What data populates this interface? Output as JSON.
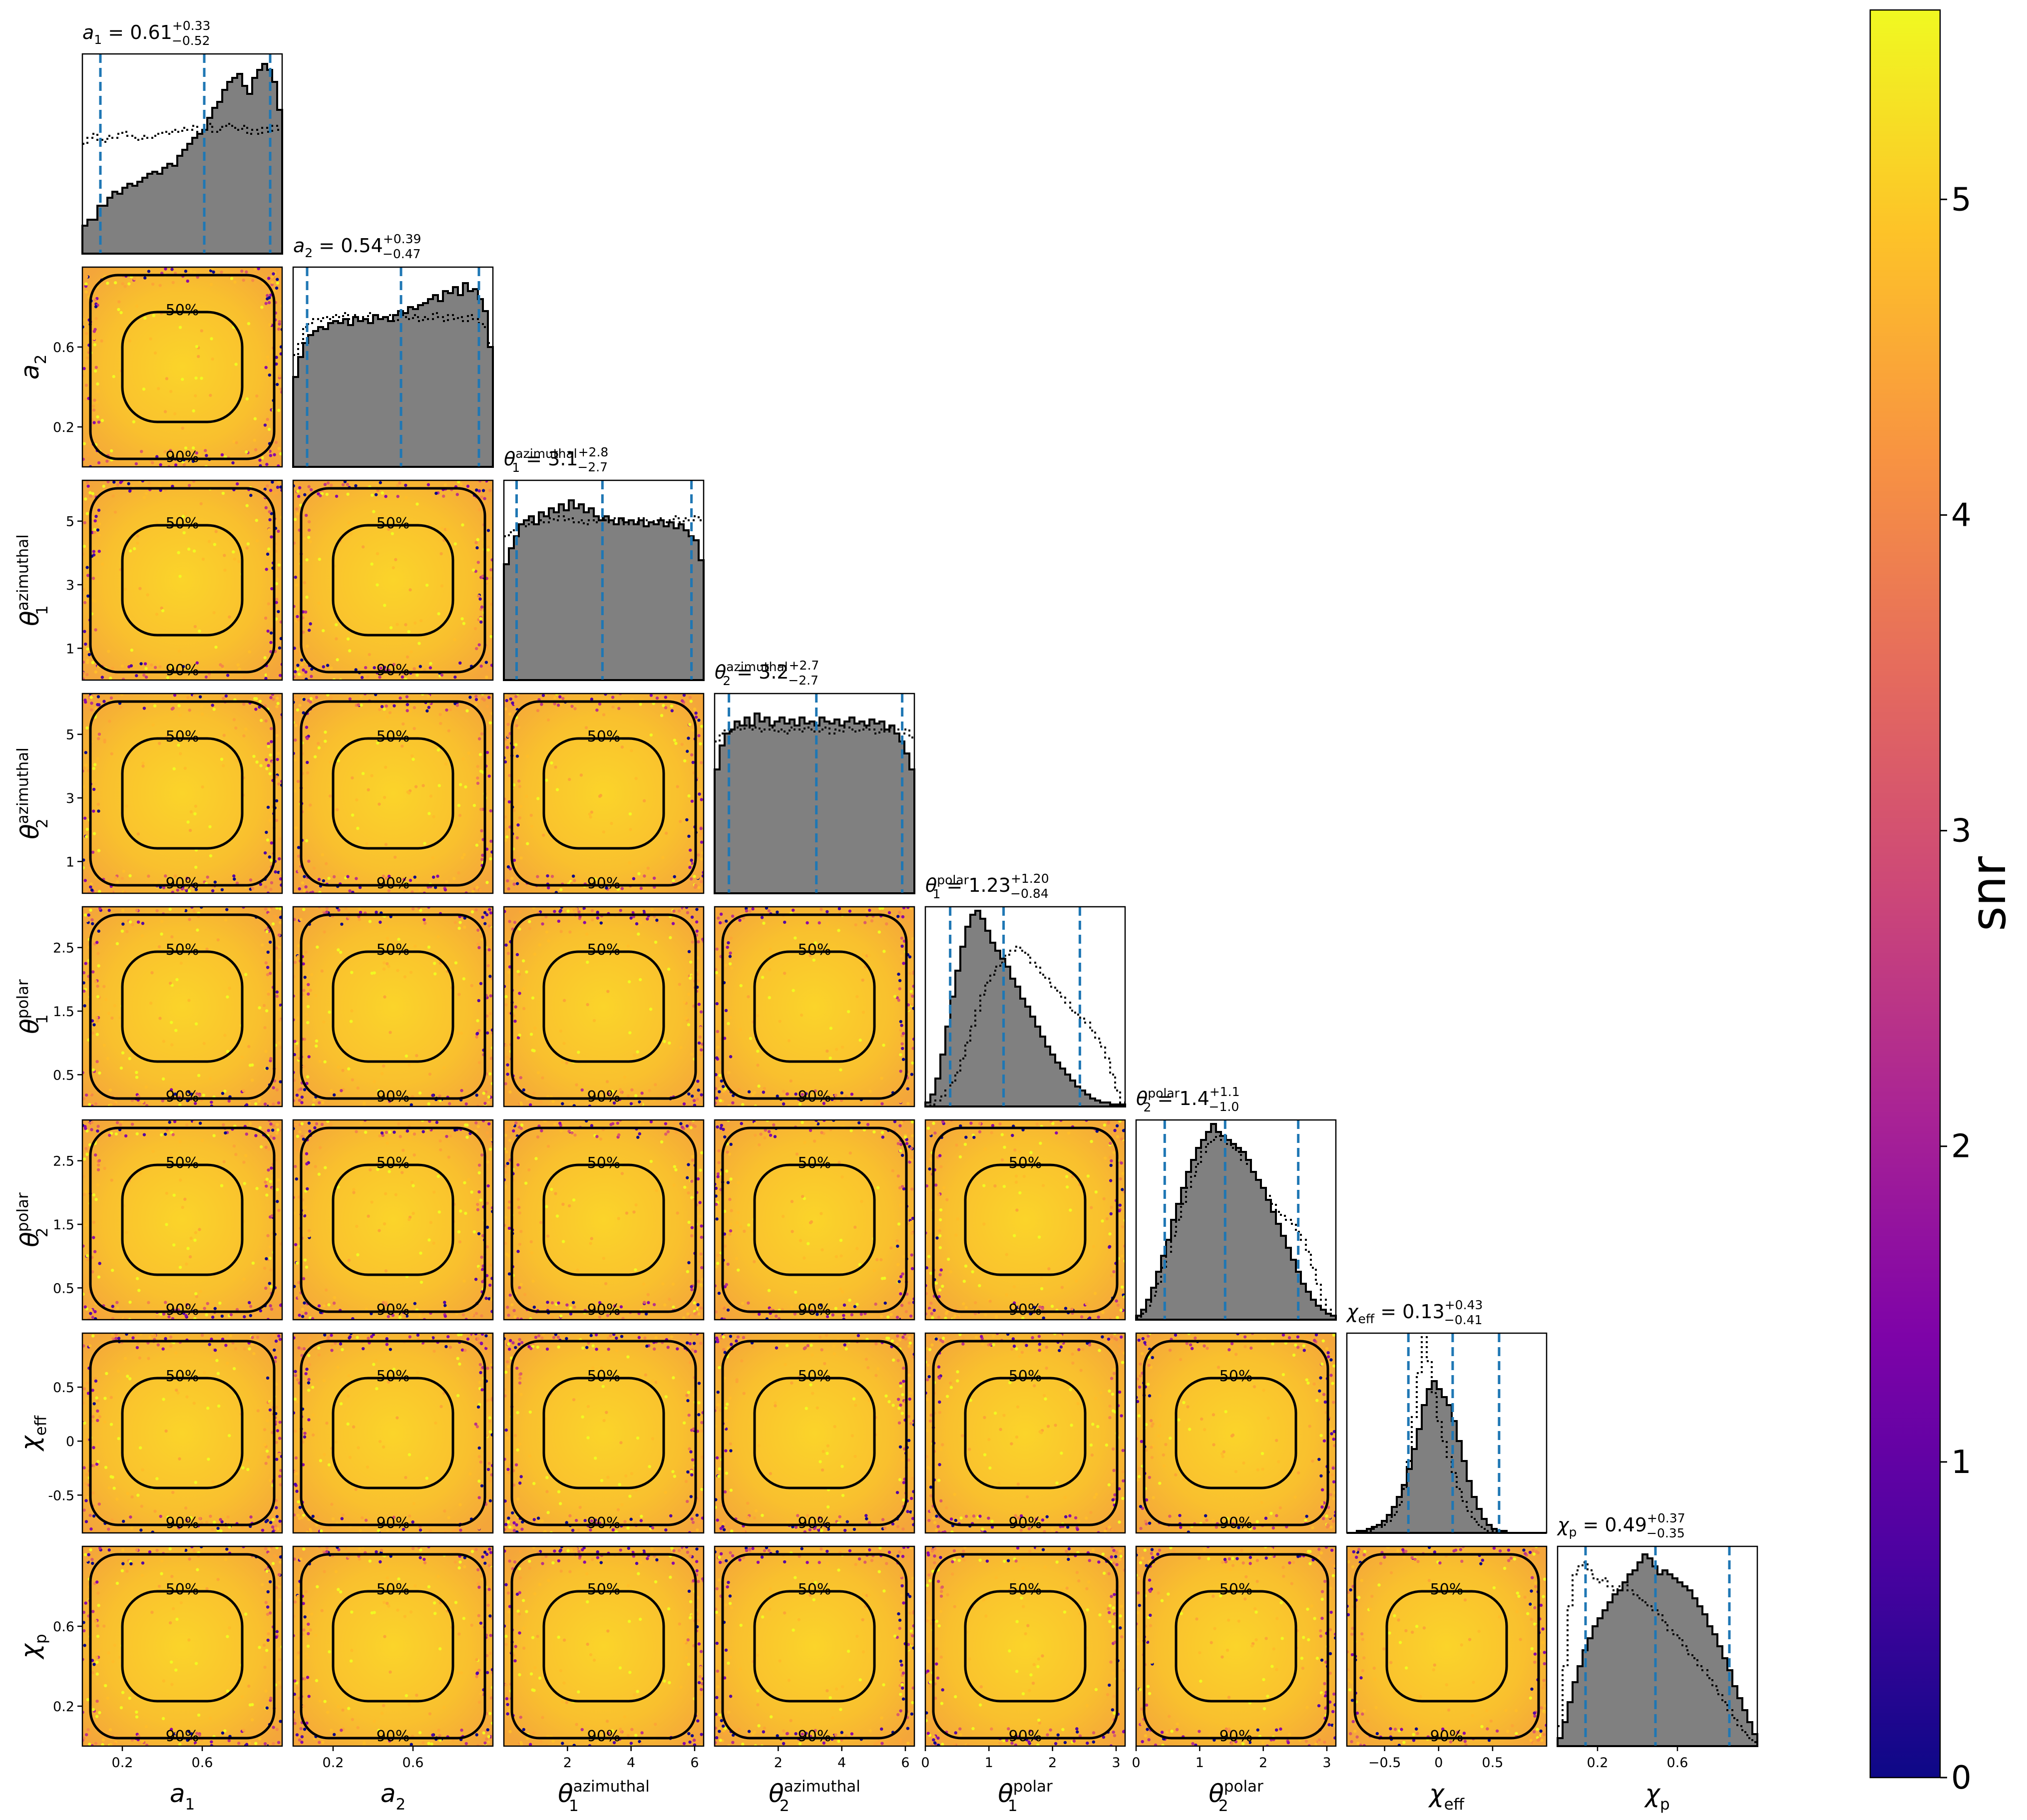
{
  "chart_data": {
    "type": "corner",
    "parameters": [
      {
        "key": "a1",
        "label": "a₁",
        "range": [
          0.0,
          1.0
        ],
        "ticks": [
          0.2,
          0.6
        ],
        "title": "a₁ = 0.61",
        "median": 0.61,
        "plus": "+0.33",
        "minus": "−0.52",
        "quantiles": [
          0.09,
          0.61,
          0.94
        ],
        "hist_solid": [
          0.14,
          0.17,
          0.17,
          0.24,
          0.24,
          0.28,
          0.31,
          0.3,
          0.33,
          0.35,
          0.34,
          0.36,
          0.38,
          0.4,
          0.41,
          0.4,
          0.43,
          0.45,
          0.44,
          0.49,
          0.52,
          0.55,
          0.58,
          0.6,
          0.62,
          0.68,
          0.73,
          0.76,
          0.82,
          0.86,
          0.88,
          0.9,
          0.84,
          0.8,
          0.88,
          0.92,
          0.95,
          0.92,
          0.86,
          0.72
        ],
        "hist_dotted": [
          0.55,
          0.58,
          0.6,
          0.57,
          0.56,
          0.59,
          0.58,
          0.6,
          0.61,
          0.59,
          0.58,
          0.57,
          0.59,
          0.58,
          0.59,
          0.6,
          0.61,
          0.6,
          0.62,
          0.61,
          0.63,
          0.62,
          0.64,
          0.6,
          0.63,
          0.65,
          0.61,
          0.62,
          0.64,
          0.65,
          0.63,
          0.62,
          0.64,
          0.6,
          0.62,
          0.6,
          0.63,
          0.61,
          0.64,
          0.62
        ]
      },
      {
        "key": "a2",
        "label": "a₂",
        "range": [
          0.0,
          1.0
        ],
        "ticks": [
          0.2,
          0.6
        ],
        "title": "a₂ = 0.54",
        "median": 0.54,
        "plus": "+0.39",
        "minus": "−0.47",
        "quantiles": [
          0.07,
          0.54,
          0.93
        ],
        "hist_solid": [
          0.45,
          0.55,
          0.62,
          0.66,
          0.68,
          0.7,
          0.69,
          0.72,
          0.73,
          0.72,
          0.74,
          0.71,
          0.75,
          0.73,
          0.74,
          0.72,
          0.76,
          0.74,
          0.75,
          0.73,
          0.76,
          0.78,
          0.77,
          0.8,
          0.79,
          0.81,
          0.82,
          0.84,
          0.86,
          0.83,
          0.88,
          0.87,
          0.9,
          0.86,
          0.92,
          0.88,
          0.89,
          0.84,
          0.78,
          0.6
        ],
        "hist_dotted": [
          0.56,
          0.62,
          0.7,
          0.72,
          0.74,
          0.73,
          0.75,
          0.74,
          0.76,
          0.75,
          0.77,
          0.74,
          0.76,
          0.75,
          0.74,
          0.77,
          0.76,
          0.74,
          0.75,
          0.76,
          0.73,
          0.76,
          0.75,
          0.74,
          0.76,
          0.73,
          0.75,
          0.74,
          0.77,
          0.75,
          0.73,
          0.76,
          0.74,
          0.75,
          0.73,
          0.76,
          0.74,
          0.72,
          0.7,
          0.62
        ]
      },
      {
        "key": "t1az",
        "label": "θ₁^azimuthal",
        "range": [
          0.0,
          6.2832
        ],
        "ticks": [
          1,
          3,
          5
        ],
        "xticks": [
          2,
          4,
          6
        ],
        "title": "θ₁^azimuthal = 3.1",
        "median": 3.1,
        "plus": "+2.8",
        "minus": "−2.7",
        "quantiles": [
          0.4,
          3.1,
          5.9
        ],
        "hist_solid": [
          0.58,
          0.66,
          0.72,
          0.78,
          0.8,
          0.82,
          0.78,
          0.84,
          0.82,
          0.86,
          0.84,
          0.88,
          0.85,
          0.9,
          0.86,
          0.88,
          0.84,
          0.86,
          0.82,
          0.8,
          0.82,
          0.8,
          0.78,
          0.81,
          0.79,
          0.8,
          0.78,
          0.8,
          0.77,
          0.79,
          0.78,
          0.8,
          0.77,
          0.79,
          0.76,
          0.78,
          0.75,
          0.72,
          0.7,
          0.6
        ],
        "hist_dotted": [
          0.72,
          0.74,
          0.76,
          0.78,
          0.77,
          0.79,
          0.78,
          0.8,
          0.79,
          0.81,
          0.8,
          0.82,
          0.8,
          0.81,
          0.79,
          0.8,
          0.78,
          0.8,
          0.79,
          0.81,
          0.8,
          0.79,
          0.81,
          0.8,
          0.78,
          0.8,
          0.79,
          0.81,
          0.8,
          0.79,
          0.8,
          0.81,
          0.79,
          0.8,
          0.82,
          0.79,
          0.81,
          0.8,
          0.82,
          0.8
        ]
      },
      {
        "key": "t2az",
        "label": "θ₂^azimuthal",
        "range": [
          0.0,
          6.2832
        ],
        "ticks": [
          1,
          3,
          5
        ],
        "xticks": [
          2,
          4,
          6
        ],
        "title": "θ₂^azimuthal = 3.2",
        "median": 3.2,
        "plus": "+2.7",
        "minus": "−2.7",
        "quantiles": [
          0.45,
          3.2,
          5.9
        ],
        "hist_solid": [
          0.62,
          0.74,
          0.8,
          0.82,
          0.86,
          0.84,
          0.88,
          0.84,
          0.9,
          0.86,
          0.88,
          0.84,
          0.86,
          0.88,
          0.85,
          0.87,
          0.84,
          0.88,
          0.85,
          0.86,
          0.84,
          0.88,
          0.86,
          0.85,
          0.87,
          0.84,
          0.86,
          0.88,
          0.85,
          0.86,
          0.84,
          0.87,
          0.85,
          0.86,
          0.82,
          0.84,
          0.8,
          0.76,
          0.7,
          0.62
        ],
        "hist_dotted": [
          0.76,
          0.8,
          0.82,
          0.81,
          0.83,
          0.82,
          0.84,
          0.82,
          0.83,
          0.81,
          0.82,
          0.83,
          0.81,
          0.82,
          0.8,
          0.83,
          0.82,
          0.81,
          0.83,
          0.82,
          0.81,
          0.82,
          0.83,
          0.8,
          0.82,
          0.81,
          0.83,
          0.82,
          0.81,
          0.82,
          0.83,
          0.82,
          0.8,
          0.82,
          0.81,
          0.83,
          0.82,
          0.8,
          0.82,
          0.78
        ]
      },
      {
        "key": "t1p",
        "label": "θ₁^polar",
        "range": [
          0.0,
          3.1416
        ],
        "ticks": [
          0.5,
          1.5,
          2.5
        ],
        "xticks": [
          0,
          1,
          2,
          3
        ],
        "title": "θ₁^polar = 1.23",
        "median": 1.23,
        "plus": "+1.20",
        "minus": "−0.84",
        "quantiles": [
          0.39,
          1.23,
          2.43
        ],
        "hist_solid": [
          0.02,
          0.06,
          0.14,
          0.26,
          0.4,
          0.55,
          0.68,
          0.8,
          0.9,
          0.96,
          0.98,
          0.94,
          0.88,
          0.82,
          0.78,
          0.74,
          0.7,
          0.64,
          0.6,
          0.54,
          0.5,
          0.45,
          0.4,
          0.35,
          0.3,
          0.26,
          0.22,
          0.19,
          0.16,
          0.13,
          0.1,
          0.08,
          0.06,
          0.04,
          0.03,
          0.02,
          0.02,
          0.01,
          0.01,
          0.01
        ],
        "hist_dotted": [
          0.0,
          0.01,
          0.03,
          0.05,
          0.08,
          0.12,
          0.17,
          0.24,
          0.32,
          0.4,
          0.48,
          0.56,
          0.62,
          0.66,
          0.7,
          0.72,
          0.76,
          0.78,
          0.8,
          0.78,
          0.76,
          0.72,
          0.7,
          0.66,
          0.64,
          0.6,
          0.58,
          0.55,
          0.52,
          0.48,
          0.46,
          0.44,
          0.42,
          0.38,
          0.34,
          0.3,
          0.24,
          0.16,
          0.08,
          0.02
        ]
      },
      {
        "key": "t2p",
        "label": "θ₂^polar",
        "range": [
          0.0,
          3.1416
        ],
        "ticks": [
          0.5,
          1.5,
          2.5
        ],
        "xticks": [
          0,
          1,
          2,
          3
        ],
        "title": "θ₂^polar = 1.4",
        "median": 1.4,
        "plus": "+1.1",
        "minus": "−1.0",
        "quantiles": [
          0.45,
          1.4,
          2.55
        ],
        "hist_solid": [
          0.02,
          0.05,
          0.1,
          0.16,
          0.24,
          0.32,
          0.4,
          0.5,
          0.58,
          0.66,
          0.74,
          0.8,
          0.86,
          0.9,
          0.94,
          0.98,
          0.94,
          0.92,
          0.9,
          0.88,
          0.86,
          0.84,
          0.8,
          0.74,
          0.7,
          0.66,
          0.6,
          0.54,
          0.48,
          0.42,
          0.36,
          0.3,
          0.24,
          0.18,
          0.14,
          0.1,
          0.07,
          0.05,
          0.03,
          0.02
        ],
        "hist_dotted": [
          0.01,
          0.03,
          0.07,
          0.12,
          0.18,
          0.26,
          0.34,
          0.42,
          0.5,
          0.58,
          0.66,
          0.72,
          0.78,
          0.84,
          0.88,
          0.9,
          0.92,
          0.9,
          0.88,
          0.86,
          0.84,
          0.8,
          0.78,
          0.74,
          0.7,
          0.66,
          0.62,
          0.58,
          0.54,
          0.52,
          0.5,
          0.48,
          0.44,
          0.4,
          0.34,
          0.26,
          0.18,
          0.1,
          0.05,
          0.02
        ]
      },
      {
        "key": "chieff",
        "label": "χ_eff",
        "range": [
          -0.85,
          1.0
        ],
        "ticks": [
          -0.5,
          0.0,
          0.5
        ],
        "xticks": [
          -0.5,
          0.0,
          0.5
        ],
        "title": "χ_eff = 0.13",
        "median": 0.13,
        "plus": "+0.43",
        "minus": "−0.41",
        "quantiles": [
          -0.28,
          0.13,
          0.56
        ],
        "hist_solid": [
          0.0,
          0.0,
          0.01,
          0.01,
          0.02,
          0.03,
          0.04,
          0.06,
          0.09,
          0.13,
          0.18,
          0.24,
          0.32,
          0.42,
          0.52,
          0.64,
          0.72,
          0.76,
          0.72,
          0.68,
          0.64,
          0.56,
          0.46,
          0.36,
          0.26,
          0.18,
          0.12,
          0.07,
          0.04,
          0.02,
          0.01,
          0.01,
          0.0,
          0.0,
          0.0,
          0.0,
          0.0,
          0.0,
          0.0,
          0.0
        ],
        "hist_dotted": [
          0.0,
          0.0,
          0.0,
          0.01,
          0.01,
          0.02,
          0.03,
          0.04,
          0.06,
          0.09,
          0.14,
          0.22,
          0.36,
          0.58,
          0.8,
          0.98,
          0.86,
          0.7,
          0.56,
          0.46,
          0.38,
          0.3,
          0.22,
          0.16,
          0.11,
          0.07,
          0.04,
          0.02,
          0.01,
          0.01,
          0.0,
          0.0,
          0.0,
          0.0,
          0.0,
          0.0,
          0.0,
          0.0,
          0.0,
          0.0
        ]
      },
      {
        "key": "chip",
        "label": "χ_p",
        "range": [
          0.0,
          1.0
        ],
        "ticks": [
          0.2,
          0.6
        ],
        "xticks": [
          0.2,
          0.6
        ],
        "title": "χ_p = 0.49",
        "median": 0.49,
        "plus": "+0.37",
        "minus": "−0.35",
        "quantiles": [
          0.14,
          0.49,
          0.86
        ],
        "hist_solid": [
          0.04,
          0.12,
          0.22,
          0.32,
          0.4,
          0.48,
          0.54,
          0.6,
          0.64,
          0.68,
          0.72,
          0.76,
          0.78,
          0.82,
          0.86,
          0.88,
          0.92,
          0.96,
          0.94,
          0.9,
          0.86,
          0.88,
          0.86,
          0.84,
          0.82,
          0.8,
          0.78,
          0.74,
          0.7,
          0.66,
          0.6,
          0.56,
          0.5,
          0.44,
          0.38,
          0.3,
          0.24,
          0.18,
          0.12,
          0.06
        ],
        "hist_dotted": [
          0.1,
          0.4,
          0.7,
          0.86,
          0.9,
          0.92,
          0.88,
          0.84,
          0.82,
          0.84,
          0.8,
          0.78,
          0.8,
          0.82,
          0.78,
          0.76,
          0.74,
          0.72,
          0.7,
          0.68,
          0.66,
          0.62,
          0.58,
          0.56,
          0.54,
          0.5,
          0.46,
          0.44,
          0.4,
          0.38,
          0.34,
          0.3,
          0.26,
          0.22,
          0.18,
          0.14,
          0.1,
          0.07,
          0.04,
          0.02
        ]
      }
    ],
    "contour_labels": [
      "50%",
      "90%"
    ],
    "colorbar": {
      "label": "snr",
      "range": [
        0,
        5.6
      ],
      "ticks": [
        0,
        1,
        2,
        3,
        4,
        5
      ],
      "colormap": "plasma"
    },
    "colors": {
      "hist_fill": "#808080",
      "quantile_line": "#1f77b4",
      "contour": "#000000",
      "frame": "#000000"
    }
  }
}
